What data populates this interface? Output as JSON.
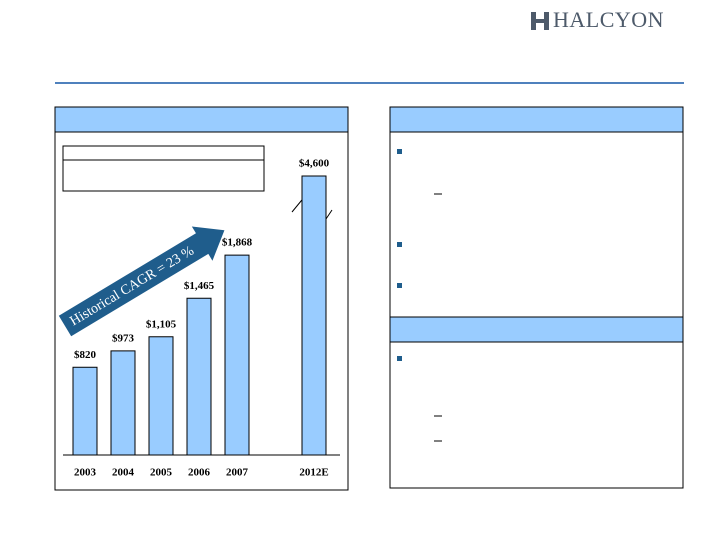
{
  "logo": "HALCYON",
  "chart_data": {
    "type": "bar",
    "categories": [
      "2003",
      "2004",
      "2005",
      "2006",
      "2007",
      "2012E"
    ],
    "values": [
      820,
      973,
      1105,
      1465,
      1868,
      4600
    ],
    "value_labels": [
      "$820",
      "$973",
      "$1,105",
      "$1,465",
      "$1,868",
      "$4,600"
    ],
    "color": "#99ccff",
    "annotation": "Historical CAGR =  23 %"
  }
}
